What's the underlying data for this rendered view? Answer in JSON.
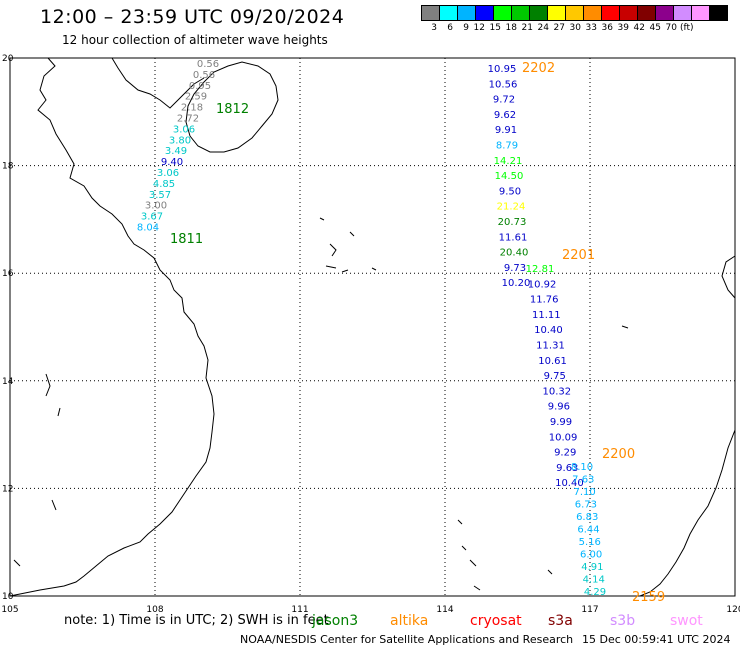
{
  "header": {
    "title": "12:00 – 23:59 UTC 09/20/2024",
    "subtitle": "12 hour collection of altimeter wave heights"
  },
  "legend": {
    "labels": [
      "3",
      "6",
      "9",
      "12",
      "15",
      "18",
      "21",
      "24",
      "27",
      "30",
      "33",
      "36",
      "39",
      "42",
      "45",
      "70"
    ],
    "unit": "(ft)",
    "colors": [
      "#808080",
      "#00ffff",
      "#00b4ff",
      "#0000ff",
      "#00ff00",
      "#00c800",
      "#008000",
      "#ffff00",
      "#ffc800",
      "#ff8c00",
      "#ff0000",
      "#c80000",
      "#800000",
      "#8c008c",
      "#d28cff",
      "#ff96ff",
      "#000000"
    ]
  },
  "axes": {
    "x_ticks": [
      "105",
      "108",
      "111",
      "114",
      "117",
      "120"
    ],
    "y_ticks": [
      "20",
      "18",
      "16",
      "14",
      "12",
      "10"
    ]
  },
  "tracks": [
    {
      "id": "1812",
      "label": "1812",
      "label_color": "#008000",
      "points": [
        {
          "v": "0.56",
          "c": "#808080"
        },
        {
          "v": "0.56",
          "c": "#808080"
        },
        {
          "v": "0.95",
          "c": "#808080"
        },
        {
          "v": "2.59",
          "c": "#808080"
        },
        {
          "v": "2.18",
          "c": "#808080"
        },
        {
          "v": "2.72",
          "c": "#808080"
        },
        {
          "v": "3.06",
          "c": "#00c8c8"
        },
        {
          "v": "3.80",
          "c": "#00c8c8"
        },
        {
          "v": "3.49",
          "c": "#00c8c8"
        },
        {
          "v": "9.40",
          "c": "#0000c8"
        },
        {
          "v": "3.06",
          "c": "#00c8c8"
        },
        {
          "v": "4.85",
          "c": "#00c8c8"
        },
        {
          "v": "3.57",
          "c": "#00c8c8"
        },
        {
          "v": "3.00",
          "c": "#808080"
        },
        {
          "v": "3.67",
          "c": "#00c8c8"
        },
        {
          "v": "8.04",
          "c": "#00b4ff"
        }
      ]
    },
    {
      "id": "2202",
      "label": "2202",
      "label_color": "#ff8c00",
      "points": [
        {
          "v": "10.95",
          "c": "#0000c8"
        },
        {
          "v": "10.56",
          "c": "#0000c8"
        },
        {
          "v": "9.72",
          "c": "#0000c8"
        },
        {
          "v": "9.62",
          "c": "#0000c8"
        },
        {
          "v": "9.91",
          "c": "#0000c8"
        },
        {
          "v": "8.79",
          "c": "#00b4ff"
        },
        {
          "v": "14.21",
          "c": "#00ff00"
        },
        {
          "v": "14.50",
          "c": "#00ff00"
        },
        {
          "v": "9.50",
          "c": "#0000c8"
        },
        {
          "v": "21.24",
          "c": "#ffff00"
        },
        {
          "v": "20.73",
          "c": "#008000"
        },
        {
          "v": "11.61",
          "c": "#0000c8"
        },
        {
          "v": "20.40",
          "c": "#008000"
        },
        {
          "v": "9.73",
          "c": "#0000c8"
        },
        {
          "v": "10.20",
          "c": "#0000c8"
        }
      ]
    },
    {
      "id": "2201",
      "label": "2201",
      "label_color": "#ff8c00",
      "points": [
        {
          "v": "12.81",
          "c": "#00ff00"
        },
        {
          "v": "10.92",
          "c": "#0000c8"
        },
        {
          "v": "11.76",
          "c": "#0000c8"
        },
        {
          "v": "11.11",
          "c": "#0000c8"
        },
        {
          "v": "10.40",
          "c": "#0000c8"
        },
        {
          "v": "11.31",
          "c": "#0000c8"
        },
        {
          "v": "10.61",
          "c": "#0000c8"
        },
        {
          "v": "9.75",
          "c": "#0000c8"
        },
        {
          "v": "10.32",
          "c": "#0000c8"
        },
        {
          "v": "9.96",
          "c": "#0000c8"
        },
        {
          "v": "9.99",
          "c": "#0000c8"
        },
        {
          "v": "10.09",
          "c": "#0000c8"
        },
        {
          "v": "9.29",
          "c": "#0000c8"
        },
        {
          "v": "9.63",
          "c": "#0000c8"
        },
        {
          "v": "10.40",
          "c": "#0000c8"
        }
      ]
    },
    {
      "id": "2200",
      "label": "2200",
      "label_color": "#ff8c00",
      "points": [
        {
          "v": "8.10",
          "c": "#00b4ff"
        },
        {
          "v": "7.63",
          "c": "#00b4ff"
        },
        {
          "v": "7.10",
          "c": "#00b4ff"
        },
        {
          "v": "6.73",
          "c": "#00b4ff"
        },
        {
          "v": "6.83",
          "c": "#00b4ff"
        },
        {
          "v": "6.44",
          "c": "#00b4ff"
        },
        {
          "v": "5.16",
          "c": "#00b4ff"
        },
        {
          "v": "6.00",
          "c": "#00b4ff"
        },
        {
          "v": "4.91",
          "c": "#00c8c8"
        },
        {
          "v": "4.14",
          "c": "#00c8c8"
        },
        {
          "v": "4.29",
          "c": "#00c8c8"
        }
      ]
    },
    {
      "id": "2159",
      "label": "2159",
      "label_color": "#ff8c00",
      "points": []
    },
    {
      "id": "1811",
      "label": "1811",
      "label_color": "#008000",
      "points": []
    }
  ],
  "footer": {
    "note": "note:  1) Time is in UTC; 2) SWH is in feet",
    "satellites": [
      {
        "name": "jason3",
        "color": "#008000"
      },
      {
        "name": "altika",
        "color": "#ff8c00"
      },
      {
        "name": "cryosat",
        "color": "#ff0000"
      },
      {
        "name": "s3a",
        "color": "#800000"
      },
      {
        "name": "s3b",
        "color": "#d28cff"
      },
      {
        "name": "swot",
        "color": "#ff96ff"
      }
    ],
    "credit": "NOAA/NESDIS Center for Satellite Applications and Research",
    "generated": "15 Dec 00:59:41 UTC 2024"
  }
}
